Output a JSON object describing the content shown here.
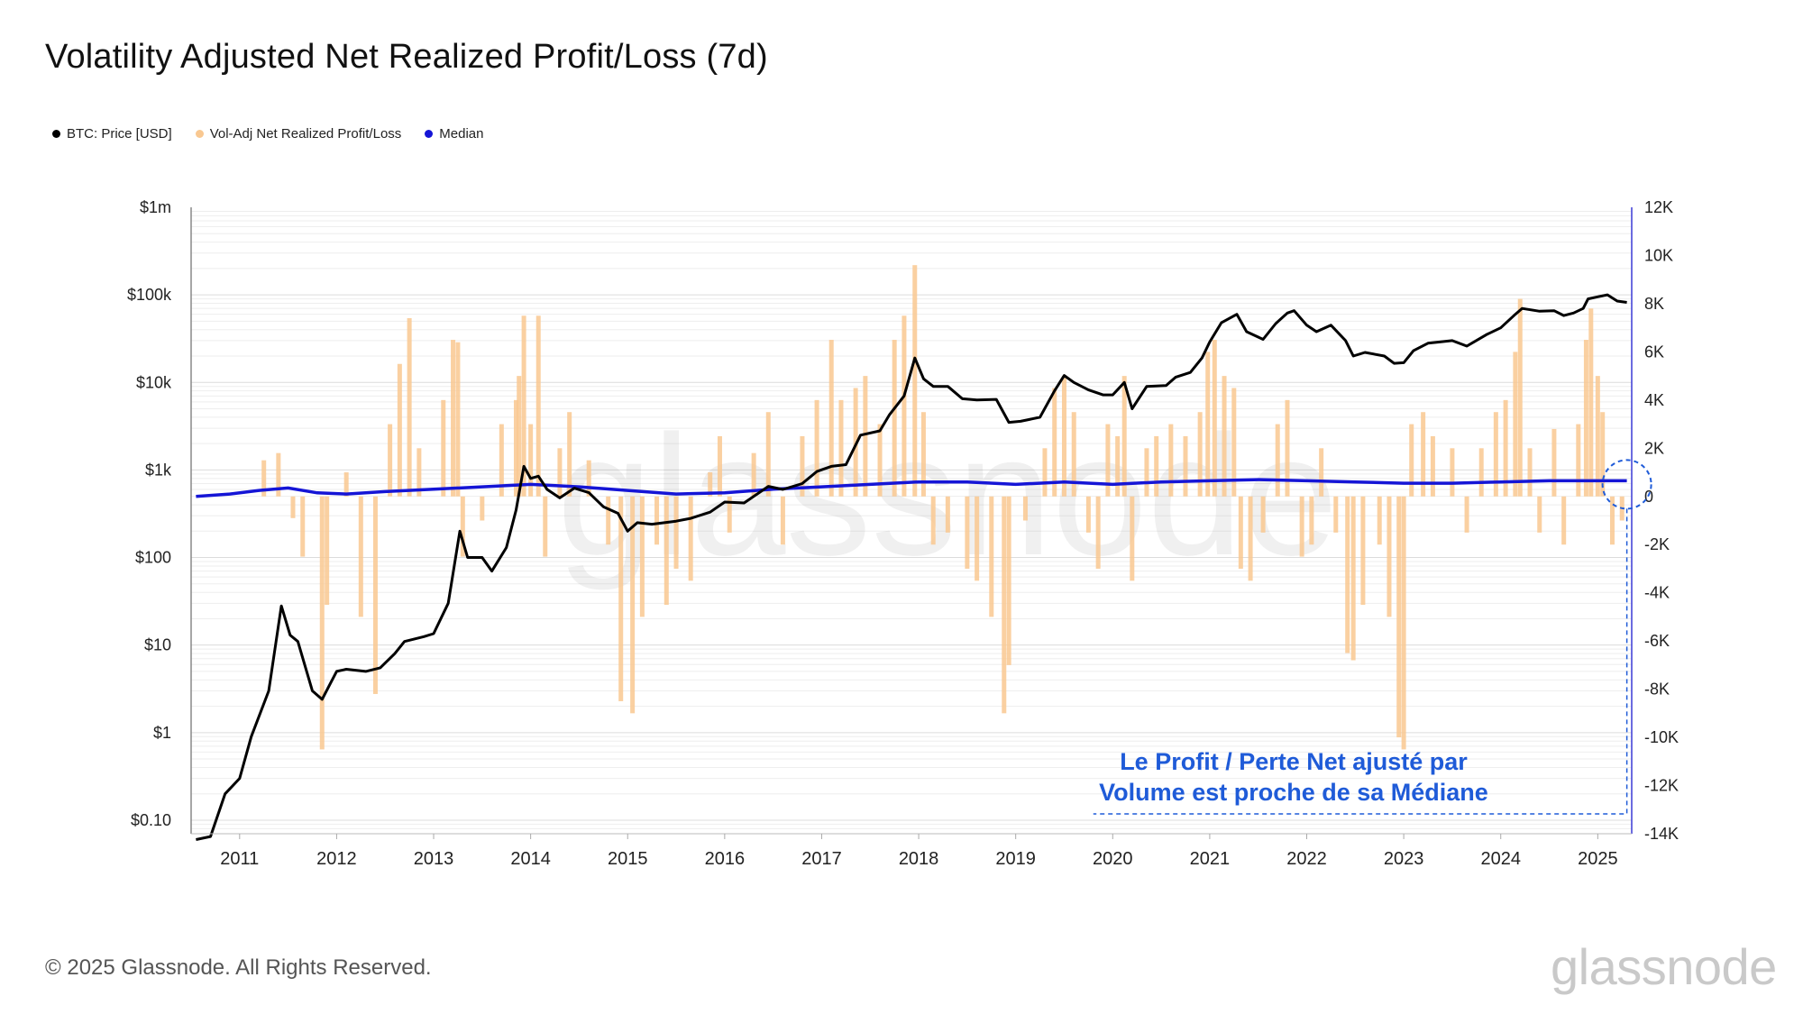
{
  "title": "Volatility Adjusted Net Realized Profit/Loss (7d)",
  "legend": [
    {
      "label": "BTC: Price [USD]",
      "color": "#000000"
    },
    {
      "label": "Vol-Adj Net Realized Profit/Loss",
      "color": "#f9c891"
    },
    {
      "label": "Median",
      "color": "#1515d6"
    }
  ],
  "watermark": "glassnode",
  "annotation": {
    "line1": "Le Profit / Perte Net ajusté par",
    "line2": "Volume est proche de sa Médiane",
    "color": "#1f5bd8"
  },
  "footer": {
    "copyright": "© 2025 Glassnode. All Rights Reserved.",
    "logo": "glassnode"
  },
  "chart_data": {
    "type": "line",
    "title": "Volatility Adjusted Net Realized Profit/Loss (7d)",
    "x_ticks": [
      "2011",
      "2012",
      "2013",
      "2014",
      "2015",
      "2016",
      "2017",
      "2018",
      "2019",
      "2020",
      "2021",
      "2022",
      "2023",
      "2024",
      "2025"
    ],
    "x_range": [
      2010.5,
      2025.35
    ],
    "y_left": {
      "label": "BTC: Price [USD]",
      "scale": "log",
      "ticks": [
        "$0.10",
        "$1",
        "$10",
        "$100",
        "$1k",
        "$10k",
        "$100k",
        "$1m"
      ],
      "tick_values": [
        0.1,
        1,
        10,
        100,
        1000,
        10000,
        100000,
        1000000
      ],
      "range": [
        0.07,
        1000000
      ]
    },
    "y_right": {
      "label": "Vol-Adj Net Realized Profit/Loss",
      "ticks": [
        "12K",
        "10K",
        "8K",
        "6K",
        "4K",
        "2K",
        "0",
        "-2K",
        "-4K",
        "-6K",
        "-8K",
        "-10K",
        "-12K",
        "-14K"
      ],
      "tick_values": [
        12000,
        10000,
        8000,
        6000,
        4000,
        2000,
        0,
        -2000,
        -4000,
        -6000,
        -8000,
        -10000,
        -12000,
        -14000
      ],
      "range": [
        -14000,
        12000
      ]
    },
    "series": [
      {
        "name": "BTC: Price [USD]",
        "axis": "left",
        "color": "#000000",
        "points": [
          [
            2010.55,
            0.06
          ],
          [
            2010.7,
            0.065
          ],
          [
            2010.85,
            0.2
          ],
          [
            2011.0,
            0.3
          ],
          [
            2011.12,
            0.9
          ],
          [
            2011.3,
            3
          ],
          [
            2011.43,
            28
          ],
          [
            2011.52,
            13
          ],
          [
            2011.6,
            11
          ],
          [
            2011.75,
            3
          ],
          [
            2011.85,
            2.4
          ],
          [
            2012.0,
            5
          ],
          [
            2012.1,
            5.3
          ],
          [
            2012.3,
            5
          ],
          [
            2012.45,
            5.5
          ],
          [
            2012.6,
            8
          ],
          [
            2012.7,
            11
          ],
          [
            2012.9,
            12.5
          ],
          [
            2013.0,
            13.5
          ],
          [
            2013.15,
            30
          ],
          [
            2013.27,
            200
          ],
          [
            2013.35,
            100
          ],
          [
            2013.5,
            100
          ],
          [
            2013.6,
            70
          ],
          [
            2013.75,
            130
          ],
          [
            2013.85,
            350
          ],
          [
            2013.93,
            1100
          ],
          [
            2014.0,
            800
          ],
          [
            2014.08,
            850
          ],
          [
            2014.17,
            600
          ],
          [
            2014.3,
            480
          ],
          [
            2014.45,
            620
          ],
          [
            2014.6,
            550
          ],
          [
            2014.75,
            380
          ],
          [
            2014.9,
            320
          ],
          [
            2015.0,
            200
          ],
          [
            2015.1,
            250
          ],
          [
            2015.25,
            240
          ],
          [
            2015.5,
            260
          ],
          [
            2015.65,
            280
          ],
          [
            2015.85,
            330
          ],
          [
            2016.0,
            430
          ],
          [
            2016.2,
            420
          ],
          [
            2016.45,
            650
          ],
          [
            2016.6,
            600
          ],
          [
            2016.8,
            700
          ],
          [
            2016.95,
            960
          ],
          [
            2017.1,
            1100
          ],
          [
            2017.25,
            1150
          ],
          [
            2017.4,
            2500
          ],
          [
            2017.6,
            2800
          ],
          [
            2017.7,
            4300
          ],
          [
            2017.85,
            7000
          ],
          [
            2017.96,
            19000
          ],
          [
            2018.05,
            11000
          ],
          [
            2018.15,
            9000
          ],
          [
            2018.3,
            9000
          ],
          [
            2018.45,
            6500
          ],
          [
            2018.6,
            6300
          ],
          [
            2018.8,
            6400
          ],
          [
            2018.93,
            3500
          ],
          [
            2019.05,
            3600
          ],
          [
            2019.25,
            4000
          ],
          [
            2019.4,
            8000
          ],
          [
            2019.5,
            12000
          ],
          [
            2019.6,
            10000
          ],
          [
            2019.75,
            8200
          ],
          [
            2019.9,
            7200
          ],
          [
            2020.0,
            7200
          ],
          [
            2020.12,
            10000
          ],
          [
            2020.2,
            5000
          ],
          [
            2020.35,
            9000
          ],
          [
            2020.55,
            9200
          ],
          [
            2020.65,
            11500
          ],
          [
            2020.8,
            13000
          ],
          [
            2020.92,
            19000
          ],
          [
            2021.0,
            29000
          ],
          [
            2021.12,
            48000
          ],
          [
            2021.28,
            60000
          ],
          [
            2021.38,
            38000
          ],
          [
            2021.55,
            31000
          ],
          [
            2021.68,
            47000
          ],
          [
            2021.8,
            62000
          ],
          [
            2021.87,
            66000
          ],
          [
            2022.0,
            45000
          ],
          [
            2022.1,
            38000
          ],
          [
            2022.25,
            45000
          ],
          [
            2022.4,
            30000
          ],
          [
            2022.48,
            20000
          ],
          [
            2022.6,
            22000
          ],
          [
            2022.8,
            20000
          ],
          [
            2022.9,
            16500
          ],
          [
            2023.0,
            16800
          ],
          [
            2023.1,
            23000
          ],
          [
            2023.25,
            28000
          ],
          [
            2023.5,
            30000
          ],
          [
            2023.65,
            26000
          ],
          [
            2023.85,
            35000
          ],
          [
            2024.0,
            42000
          ],
          [
            2024.15,
            60000
          ],
          [
            2024.22,
            70000
          ],
          [
            2024.4,
            65000
          ],
          [
            2024.55,
            66000
          ],
          [
            2024.65,
            58000
          ],
          [
            2024.75,
            62000
          ],
          [
            2024.85,
            70000
          ],
          [
            2024.9,
            90000
          ],
          [
            2025.0,
            95000
          ],
          [
            2025.1,
            100000
          ],
          [
            2025.2,
            85000
          ],
          [
            2025.3,
            82000
          ]
        ]
      },
      {
        "name": "Vol-Adj Net Realized Profit/Loss",
        "axis": "right",
        "color": "#f9c891",
        "style": "bars",
        "points": [
          [
            2011.25,
            1500
          ],
          [
            2011.4,
            1800
          ],
          [
            2011.55,
            -900
          ],
          [
            2011.65,
            -2500
          ],
          [
            2011.85,
            -10500
          ],
          [
            2011.9,
            -4500
          ],
          [
            2012.1,
            1000
          ],
          [
            2012.25,
            -5000
          ],
          [
            2012.4,
            -8200
          ],
          [
            2012.55,
            3000
          ],
          [
            2012.65,
            5500
          ],
          [
            2012.75,
            7400
          ],
          [
            2012.85,
            2000
          ],
          [
            2013.1,
            4000
          ],
          [
            2013.2,
            6500
          ],
          [
            2013.25,
            6400
          ],
          [
            2013.3,
            -2500
          ],
          [
            2013.5,
            -1000
          ],
          [
            2013.7,
            3000
          ],
          [
            2013.85,
            4000
          ],
          [
            2013.88,
            5000
          ],
          [
            2013.93,
            7500
          ],
          [
            2014.0,
            3000
          ],
          [
            2014.08,
            7500
          ],
          [
            2014.15,
            -2500
          ],
          [
            2014.3,
            2000
          ],
          [
            2014.4,
            3500
          ],
          [
            2014.6,
            1500
          ],
          [
            2014.8,
            -2000
          ],
          [
            2014.93,
            -8500
          ],
          [
            2015.05,
            -9000
          ],
          [
            2015.15,
            -5000
          ],
          [
            2015.3,
            -2000
          ],
          [
            2015.4,
            -4500
          ],
          [
            2015.5,
            -3000
          ],
          [
            2015.65,
            -3500
          ],
          [
            2015.85,
            1000
          ],
          [
            2015.95,
            2500
          ],
          [
            2016.05,
            -1500
          ],
          [
            2016.3,
            1800
          ],
          [
            2016.45,
            3500
          ],
          [
            2016.6,
            -2000
          ],
          [
            2016.8,
            2500
          ],
          [
            2016.95,
            4000
          ],
          [
            2017.1,
            6500
          ],
          [
            2017.2,
            4000
          ],
          [
            2017.35,
            4500
          ],
          [
            2017.45,
            5000
          ],
          [
            2017.6,
            3000
          ],
          [
            2017.75,
            6500
          ],
          [
            2017.85,
            7500
          ],
          [
            2017.96,
            9600
          ],
          [
            2018.05,
            3500
          ],
          [
            2018.15,
            -2000
          ],
          [
            2018.3,
            -1500
          ],
          [
            2018.5,
            -3000
          ],
          [
            2018.6,
            -3500
          ],
          [
            2018.75,
            -5000
          ],
          [
            2018.88,
            -9000
          ],
          [
            2018.93,
            -7000
          ],
          [
            2019.1,
            -1000
          ],
          [
            2019.3,
            2000
          ],
          [
            2019.4,
            4500
          ],
          [
            2019.5,
            5000
          ],
          [
            2019.6,
            3500
          ],
          [
            2019.75,
            -1500
          ],
          [
            2019.85,
            -3000
          ],
          [
            2019.95,
            3000
          ],
          [
            2020.05,
            2500
          ],
          [
            2020.12,
            5000
          ],
          [
            2020.2,
            -3500
          ],
          [
            2020.35,
            2000
          ],
          [
            2020.45,
            2500
          ],
          [
            2020.6,
            3000
          ],
          [
            2020.75,
            2500
          ],
          [
            2020.9,
            3500
          ],
          [
            2020.98,
            6000
          ],
          [
            2021.05,
            6500
          ],
          [
            2021.15,
            5000
          ],
          [
            2021.25,
            4500
          ],
          [
            2021.32,
            -3000
          ],
          [
            2021.42,
            -3500
          ],
          [
            2021.55,
            -1500
          ],
          [
            2021.7,
            3000
          ],
          [
            2021.8,
            4000
          ],
          [
            2021.95,
            -2500
          ],
          [
            2022.05,
            -2000
          ],
          [
            2022.15,
            2000
          ],
          [
            2022.3,
            -1500
          ],
          [
            2022.42,
            -6500
          ],
          [
            2022.48,
            -6800
          ],
          [
            2022.58,
            -4500
          ],
          [
            2022.75,
            -2000
          ],
          [
            2022.85,
            -5000
          ],
          [
            2022.95,
            -10000
          ],
          [
            2023.0,
            -10500
          ],
          [
            2023.08,
            3000
          ],
          [
            2023.2,
            3500
          ],
          [
            2023.3,
            2500
          ],
          [
            2023.5,
            2000
          ],
          [
            2023.65,
            -1500
          ],
          [
            2023.8,
            2000
          ],
          [
            2023.95,
            3500
          ],
          [
            2024.05,
            4000
          ],
          [
            2024.15,
            6000
          ],
          [
            2024.2,
            8200
          ],
          [
            2024.3,
            2000
          ],
          [
            2024.4,
            -1500
          ],
          [
            2024.55,
            2800
          ],
          [
            2024.65,
            -2000
          ],
          [
            2024.8,
            3000
          ],
          [
            2024.88,
            6500
          ],
          [
            2024.93,
            7800
          ],
          [
            2025.0,
            5000
          ],
          [
            2025.05,
            3500
          ],
          [
            2025.15,
            -2000
          ],
          [
            2025.25,
            -1000
          ]
        ]
      },
      {
        "name": "Median",
        "axis": "right",
        "color": "#1515d6",
        "points": [
          [
            2010.55,
            0
          ],
          [
            2010.9,
            100
          ],
          [
            2011.2,
            250
          ],
          [
            2011.5,
            350
          ],
          [
            2011.8,
            150
          ],
          [
            2012.1,
            100
          ],
          [
            2012.5,
            200
          ],
          [
            2013.0,
            300
          ],
          [
            2013.5,
            400
          ],
          [
            2014.0,
            500
          ],
          [
            2014.5,
            400
          ],
          [
            2015.0,
            250
          ],
          [
            2015.5,
            100
          ],
          [
            2016.0,
            150
          ],
          [
            2016.5,
            300
          ],
          [
            2017.0,
            400
          ],
          [
            2017.5,
            500
          ],
          [
            2018.0,
            600
          ],
          [
            2018.5,
            600
          ],
          [
            2019.0,
            500
          ],
          [
            2019.5,
            600
          ],
          [
            2020.0,
            500
          ],
          [
            2020.5,
            600
          ],
          [
            2021.0,
            650
          ],
          [
            2021.5,
            700
          ],
          [
            2022.0,
            650
          ],
          [
            2022.5,
            600
          ],
          [
            2023.0,
            550
          ],
          [
            2023.5,
            550
          ],
          [
            2024.0,
            600
          ],
          [
            2024.5,
            650
          ],
          [
            2025.0,
            650
          ],
          [
            2025.3,
            650
          ]
        ]
      }
    ]
  }
}
